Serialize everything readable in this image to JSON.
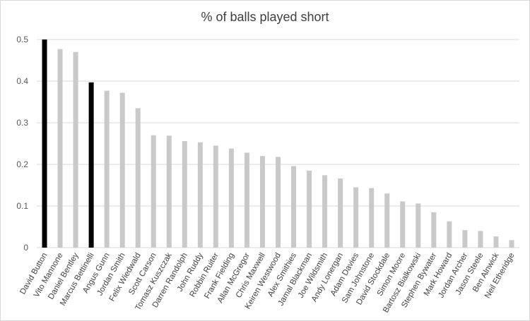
{
  "chart_data": {
    "type": "bar",
    "title": "% of balls played short",
    "xlabel": "",
    "ylabel": "",
    "ylim": [
      0,
      0.5
    ],
    "yticks": [
      "0",
      "0.1",
      "0.2",
      "0.3",
      "0.4",
      "0.5"
    ],
    "ytick_values": [
      0,
      0.1,
      0.2,
      0.3,
      0.4,
      0.5
    ],
    "grid": true,
    "colors": {
      "highlight": "#000000",
      "default": "#c9c9c9",
      "grid": "#d9d9d9"
    },
    "categories": [
      "David Button",
      "Vito Mannone",
      "Daniel Bentley",
      "Marcus Bettinelli",
      "Angus Gunn",
      "Jordan Smith",
      "Felix Wiedwald",
      "Scott Carson",
      "Tomasz Kuszczak",
      "Darren Randolph",
      "John Ruddy",
      "Robbin Ruiter",
      "Frank Fielding",
      "Allan McGregor",
      "Chris Maxwell",
      "Keiren Westwood",
      "Alex Smithies",
      "Jamal Blackman",
      "Joe Wildsmith",
      "Andy Lonergan",
      "Adam Davies",
      "Sam Johnstone",
      "David Stockdale",
      "Simon Moore",
      "Bartosz Bialkowski",
      "Stephen Bywater",
      "Mark Howard",
      "Jordan Archer",
      "Jason Steele",
      "Ben Alnwick",
      "Neil Etheridge"
    ],
    "values": [
      0.5,
      0.477,
      0.47,
      0.397,
      0.377,
      0.372,
      0.335,
      0.27,
      0.269,
      0.256,
      0.253,
      0.245,
      0.238,
      0.228,
      0.22,
      0.218,
      0.196,
      0.185,
      0.174,
      0.166,
      0.145,
      0.143,
      0.13,
      0.111,
      0.106,
      0.085,
      0.063,
      0.042,
      0.04,
      0.027,
      0.018
    ],
    "highlighted": [
      "David Button",
      "Marcus Bettinelli"
    ]
  }
}
